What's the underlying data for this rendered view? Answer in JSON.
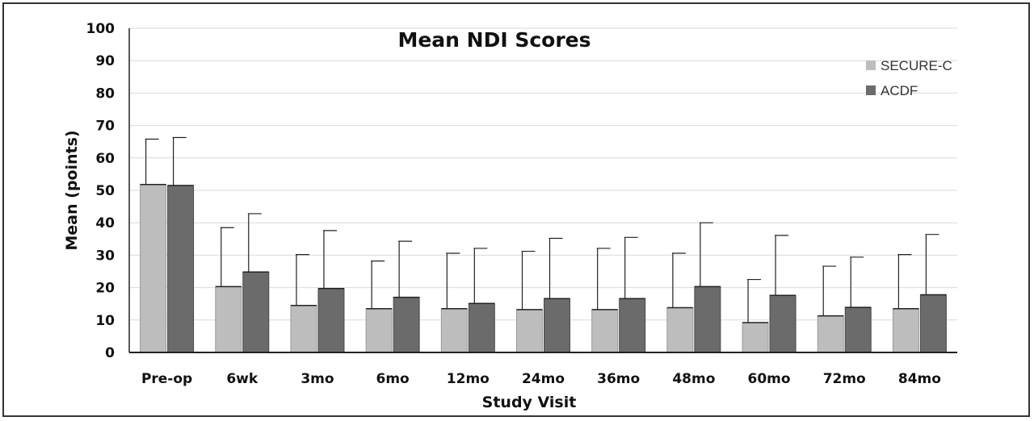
{
  "chart_data": {
    "type": "bar",
    "title": "Mean NDI Scores",
    "xlabel": "Study Visit",
    "ylabel": "Mean (points)",
    "ylim": [
      0,
      100
    ],
    "yticks": [
      "0",
      "10",
      "20",
      "30",
      "40",
      "50",
      "60",
      "70",
      "80",
      "90",
      "100"
    ],
    "categories": [
      "Pre-op",
      "6wk",
      "3mo",
      "6mo",
      "12mo",
      "24mo",
      "36mo",
      "48mo",
      "60mo",
      "72mo",
      "84mo"
    ],
    "series": [
      {
        "name": "SECURE-C",
        "color": "#bdbdbd",
        "values": [
          51.8,
          20.3,
          14.5,
          13.5,
          13.5,
          13.2,
          13.2,
          13.8,
          9.2,
          11.3,
          13.5
        ],
        "error_upper": [
          65.8,
          38.5,
          30.2,
          28.2,
          30.6,
          31.2,
          32.1,
          30.6,
          22.5,
          26.6,
          30.2
        ]
      },
      {
        "name": "ACDF",
        "color": "#6b6b6b",
        "values": [
          51.5,
          24.8,
          19.7,
          17.0,
          15.1,
          16.6,
          16.6,
          20.3,
          17.6,
          13.9,
          17.8
        ],
        "error_upper": [
          66.3,
          42.8,
          37.6,
          34.3,
          32.1,
          35.2,
          35.5,
          40.0,
          36.1,
          29.4,
          36.4
        ]
      }
    ],
    "grid": true,
    "legend_position": "top-right"
  }
}
